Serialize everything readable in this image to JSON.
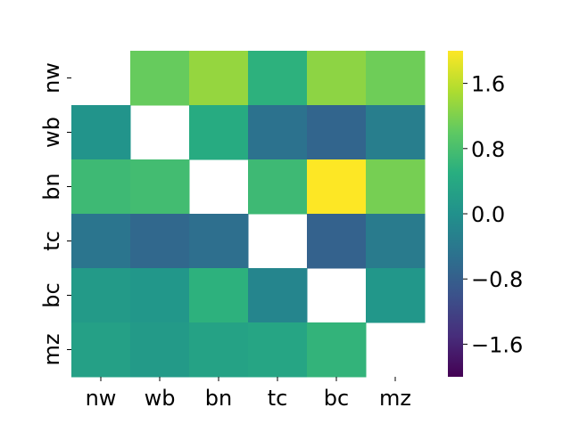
{
  "chart_data": {
    "type": "heatmap",
    "x_labels": [
      "nw",
      "wb",
      "bn",
      "tc",
      "bc",
      "mz"
    ],
    "y_labels": [
      "nw",
      "wb",
      "bn",
      "tc",
      "bc",
      "mz"
    ],
    "values": [
      [
        null,
        1.05,
        1.35,
        0.55,
        1.3,
        1.1
      ],
      [
        0.05,
        null,
        0.45,
        -0.5,
        -0.7,
        -0.3
      ],
      [
        0.7,
        0.75,
        null,
        0.7,
        2.0,
        1.15
      ],
      [
        -0.45,
        -0.65,
        -0.55,
        null,
        -0.75,
        -0.35
      ],
      [
        0.15,
        0.1,
        0.55,
        -0.2,
        null,
        0.1
      ],
      [
        0.25,
        0.15,
        0.3,
        0.35,
        0.6,
        null
      ]
    ],
    "colorbar": {
      "min": -2.0,
      "max": 2.0,
      "ticks": [
        -1.6,
        -0.8,
        0.0,
        0.8,
        1.6
      ],
      "tick_labels": [
        "−1.6",
        "−0.8",
        "0.0",
        "0.8",
        "1.6"
      ],
      "colormap": "viridis"
    },
    "title": "",
    "xlabel": "",
    "ylabel": ""
  }
}
